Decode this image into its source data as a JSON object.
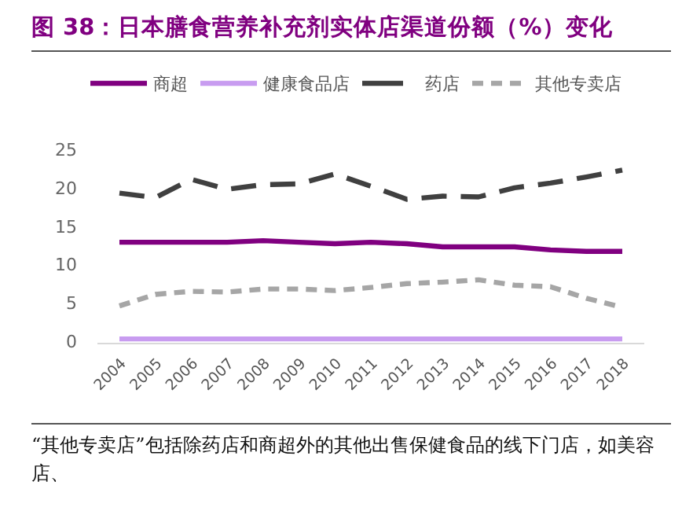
{
  "chart_data": {
    "type": "line",
    "title": "图 38：日本膳食营养补充剂实体店渠道份额（%）变化",
    "annotations": [
      "“其他专卖店”包括除药店和商超外的其他出售保健食品的线下门店，如美容店、"
    ],
    "categories": [
      "2004",
      "2005",
      "2006",
      "2007",
      "2008",
      "2009",
      "2010",
      "2011",
      "2012",
      "2013",
      "2014",
      "2015",
      "2016",
      "2017",
      "2018"
    ],
    "series": [
      {
        "name": "商超",
        "color": "#800080",
        "line_style": "solid",
        "values": [
          12.9,
          12.9,
          12.9,
          12.9,
          13.1,
          12.9,
          12.7,
          12.9,
          12.7,
          12.3,
          12.3,
          12.3,
          11.9,
          11.7,
          11.7
        ]
      },
      {
        "name": "健康食品店",
        "color": "#c89cf0",
        "line_style": "solid",
        "values": [
          0.3,
          0.3,
          0.3,
          0.3,
          0.3,
          0.3,
          0.3,
          0.3,
          0.3,
          0.3,
          0.3,
          0.3,
          0.3,
          0.3,
          0.3
        ]
      },
      {
        "name": "药店",
        "color": "#404040",
        "line_style": "dashed",
        "values": [
          19.3,
          18.7,
          21.1,
          19.8,
          20.4,
          20.5,
          21.8,
          20.2,
          18.5,
          18.9,
          18.8,
          20.0,
          20.6,
          21.4,
          22.3
        ]
      },
      {
        "name": "其他专卖店",
        "color": "#a6a6a6",
        "line_style": "dotted",
        "values": [
          4.6,
          6.1,
          6.5,
          6.4,
          6.8,
          6.8,
          6.6,
          7.0,
          7.5,
          7.7,
          8.0,
          7.3,
          7.1,
          5.6,
          4.4
        ]
      }
    ],
    "ylim": [
      0,
      25
    ],
    "yticks": [
      0,
      5,
      10,
      15,
      20,
      25
    ],
    "legend": "top"
  }
}
